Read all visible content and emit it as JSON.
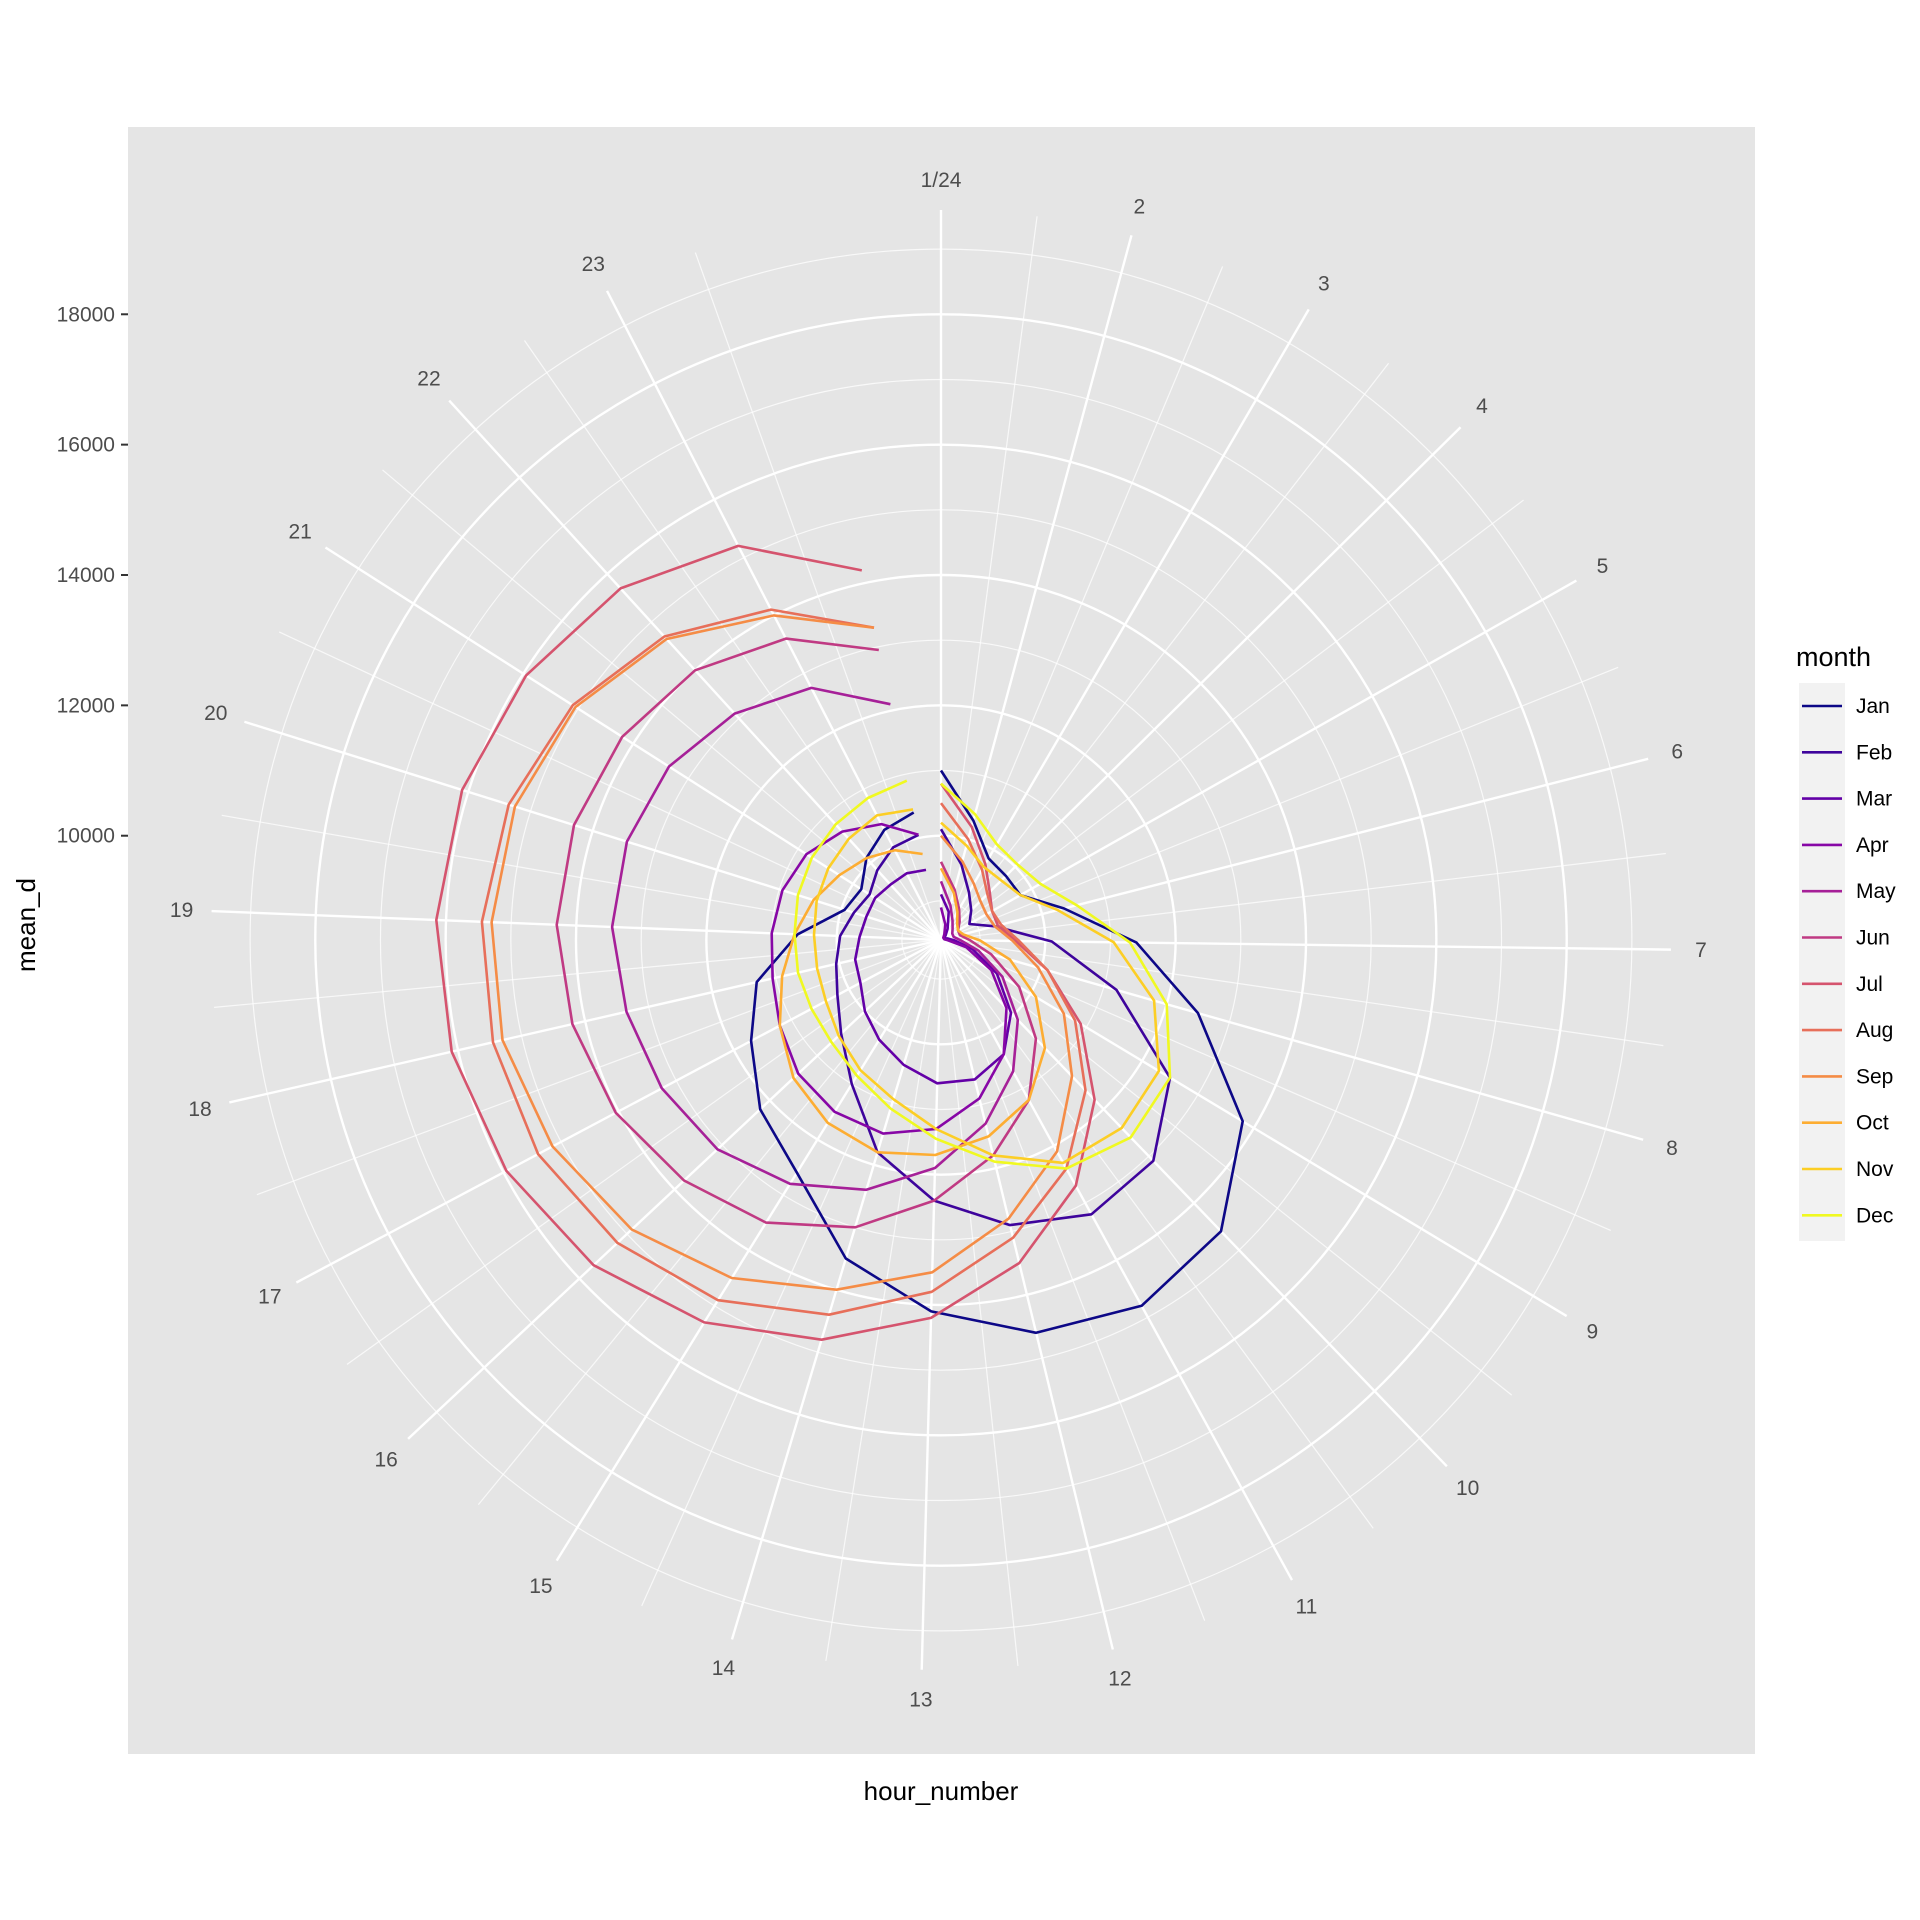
{
  "chart_data": {
    "type": "line",
    "coord": "polar",
    "xlabel": "hour_number",
    "ylabel": "mean_d",
    "x_tick_labels": [
      "1/24",
      "2",
      "3",
      "4",
      "5",
      "6",
      "7",
      "8",
      "9",
      "10",
      "11",
      "12",
      "13",
      "14",
      "15",
      "16",
      "17",
      "18",
      "19",
      "20",
      "21",
      "22",
      "23"
    ],
    "y_ticks": [
      10000,
      12000,
      14000,
      16000,
      18000
    ],
    "ylim": [
      8400,
      19600
    ],
    "grid": true,
    "panel_background": "#e5e5e5",
    "grid_color": "#ffffff",
    "legend": {
      "title": "month",
      "position": "right"
    },
    "x": [
      1,
      2,
      3,
      4,
      5,
      6,
      7,
      8,
      9,
      10,
      11,
      12,
      13,
      14,
      15,
      16,
      17,
      18,
      19,
      20,
      21,
      22,
      23,
      24
    ],
    "series": [
      {
        "name": "Jan",
        "color": "#0d0887",
        "values": [
          11000,
          10300,
          9850,
          9800,
          9800,
          10350,
          11400,
          12500,
          13800,
          14600,
          14800,
          14600,
          14100,
          13500,
          12600,
          12200,
          11700,
          11300,
          10600,
          9950,
          9850,
          10100,
          10300,
          10400
        ]
      },
      {
        "name": "Feb",
        "color": "#3e049c",
        "values": [
          10100,
          9600,
          9250,
          9050,
          8900,
          9250,
          10100,
          11200,
          12500,
          13100,
          13200,
          12900,
          12400,
          11800,
          11000,
          10500,
          10200,
          10050,
          9950,
          9800,
          9700,
          9850,
          10000,
          10050
        ]
      },
      {
        "name": "Mar",
        "color": "#6300a7",
        "values": [
          9100,
          8850,
          8600,
          8500,
          8450,
          8500,
          8600,
          8900,
          9400,
          9950,
          10400,
          10600,
          10600,
          10400,
          10200,
          10000,
          9800,
          9750,
          9650,
          9600,
          9600,
          9550,
          9550,
          9500
        ]
      },
      {
        "name": "Apr",
        "color": "#8707a6",
        "values": [
          8900,
          8650,
          8500,
          8450,
          8450,
          8450,
          8500,
          8800,
          9300,
          9850,
          10400,
          10900,
          11300,
          11500,
          11500,
          11400,
          11200,
          11050,
          11000,
          10950,
          10850,
          10650,
          10400,
          10050
        ]
      },
      {
        "name": "May",
        "color": "#a62098",
        "values": [
          9300,
          8950,
          8750,
          8650,
          8600,
          8600,
          8700,
          9000,
          9500,
          10100,
          10700,
          11300,
          11900,
          12400,
          12800,
          13100,
          13250,
          13350,
          13450,
          13450,
          13350,
          13100,
          12750,
          12100
        ]
      },
      {
        "name": "Jun",
        "color": "#c03a83",
        "values": [
          9600,
          9200,
          8950,
          8800,
          8700,
          8700,
          8850,
          9200,
          9800,
          10500,
          11200,
          11800,
          12400,
          13000,
          13500,
          13800,
          14050,
          14200,
          14300,
          14300,
          14200,
          14000,
          13600,
          12950
        ]
      },
      {
        "name": "Jul",
        "color": "#d5546e",
        "values": [
          10800,
          10200,
          9750,
          9450,
          9300,
          9300,
          9550,
          10100,
          10900,
          11800,
          12700,
          13500,
          14200,
          14800,
          15300,
          15700,
          15950,
          16100,
          16150,
          16100,
          15950,
          15700,
          15200,
          14200
        ]
      },
      {
        "name": "Aug",
        "color": "#e76f5a",
        "values": [
          10500,
          10000,
          9650,
          9400,
          9300,
          9350,
          9600,
          10100,
          10800,
          11600,
          12400,
          13100,
          13800,
          14400,
          14900,
          15200,
          15400,
          15450,
          15450,
          15350,
          15100,
          14700,
          14100,
          13300
        ]
      },
      {
        "name": "Sep",
        "color": "#f58c46",
        "values": [
          10000,
          9650,
          9400,
          9250,
          9200,
          9250,
          9500,
          9950,
          10600,
          11300,
          12100,
          12800,
          13500,
          14000,
          14500,
          14900,
          15150,
          15300,
          15300,
          15250,
          15050,
          14650,
          14000,
          13300
        ]
      },
      {
        "name": "Oct",
        "color": "#fdad32",
        "values": [
          9500,
          9150,
          8900,
          8750,
          8700,
          8750,
          9000,
          9500,
          10100,
          10700,
          11200,
          11500,
          11700,
          11800,
          11700,
          11500,
          11200,
          10900,
          10650,
          10450,
          10250,
          10100,
          9950,
          9750
        ]
      },
      {
        "name": "Nov",
        "color": "#fcce25",
        "values": [
          10200,
          9900,
          9700,
          9700,
          9800,
          10250,
          11050,
          11800,
          12300,
          12400,
          12300,
          11800,
          11300,
          10950,
          10750,
          10550,
          10400,
          10350,
          10350,
          10400,
          10450,
          10500,
          10550,
          10450
        ]
      },
      {
        "name": "Dec",
        "color": "#f0f921",
        "values": [
          10800,
          10400,
          10100,
          10050,
          10150,
          10550,
          11300,
          12000,
          12500,
          12600,
          12400,
          11900,
          11450,
          11100,
          10850,
          10700,
          10650,
          10650,
          10650,
          10700,
          10750,
          10800,
          10850,
          10900
        ]
      }
    ]
  }
}
